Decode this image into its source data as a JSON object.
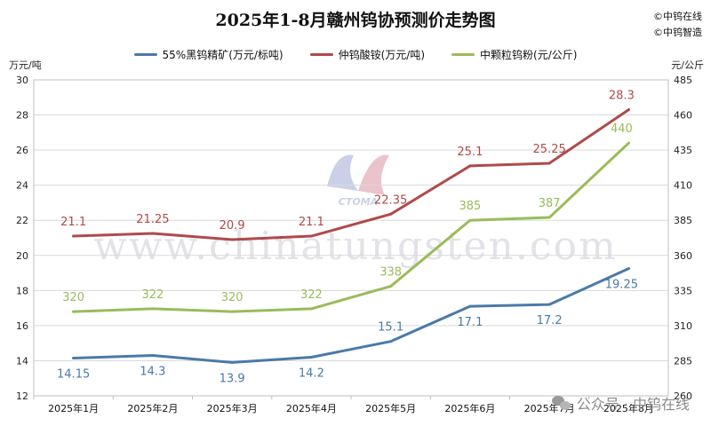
{
  "header": {
    "title": "2025年1-8月赣州钨协预测价走势图",
    "brand_line1": "©中钨在线",
    "brand_line2": "©中钨智造"
  },
  "axes": {
    "left_unit": "万元/吨",
    "right_unit": "元/公斤"
  },
  "watermark": {
    "site": "www.chinatungsten.com",
    "logo_text": "CTOMA",
    "credit": "公众号 · 中钨在线"
  },
  "chart_data": {
    "type": "line",
    "title": "2025年1-8月赣州钨协预测价走势图",
    "categories": [
      "2025年1月",
      "2025年2月",
      "2025年3月",
      "2025年4月",
      "2025年5月",
      "2025年6月",
      "2025年7月",
      "2025年8月"
    ],
    "left_axis": {
      "label": "万元/吨",
      "range": [
        12,
        30
      ],
      "ticks": [
        12,
        14,
        16,
        18,
        20,
        22,
        24,
        26,
        28,
        30
      ]
    },
    "right_axis": {
      "label": "元/公斤",
      "range": [
        260,
        485
      ],
      "ticks": [
        260,
        285,
        310,
        335,
        360,
        385,
        410,
        435,
        460,
        485
      ]
    },
    "grid": true,
    "legend_position": "top",
    "series": [
      {
        "name": "55%黑钨精矿(万元/标吨)",
        "axis": "left",
        "color": "#4a7aa8",
        "values": [
          14.15,
          14.3,
          13.9,
          14.2,
          15.1,
          17.1,
          17.2,
          19.25
        ],
        "labels": [
          "14.15",
          "14.3",
          "13.9",
          "14.2",
          "15.1",
          "17.1",
          "17.2",
          "19.25"
        ]
      },
      {
        "name": "仲钨酸铵(万元/吨)",
        "axis": "left",
        "color": "#b04a4a",
        "values": [
          21.1,
          21.25,
          20.9,
          21.1,
          22.35,
          25.1,
          25.25,
          28.3
        ],
        "labels": [
          "21.1",
          "21.25",
          "20.9",
          "21.1",
          "22.35",
          "25.1",
          "25.25",
          "28.3"
        ]
      },
      {
        "name": "中颗粒钨粉(元/公斤)",
        "axis": "right",
        "color": "#9bbb59",
        "values": [
          320,
          322,
          320,
          322,
          338,
          385,
          387,
          440
        ],
        "labels": [
          "320",
          "322",
          "320",
          "322",
          "338",
          "385",
          "387",
          "440"
        ]
      }
    ]
  }
}
